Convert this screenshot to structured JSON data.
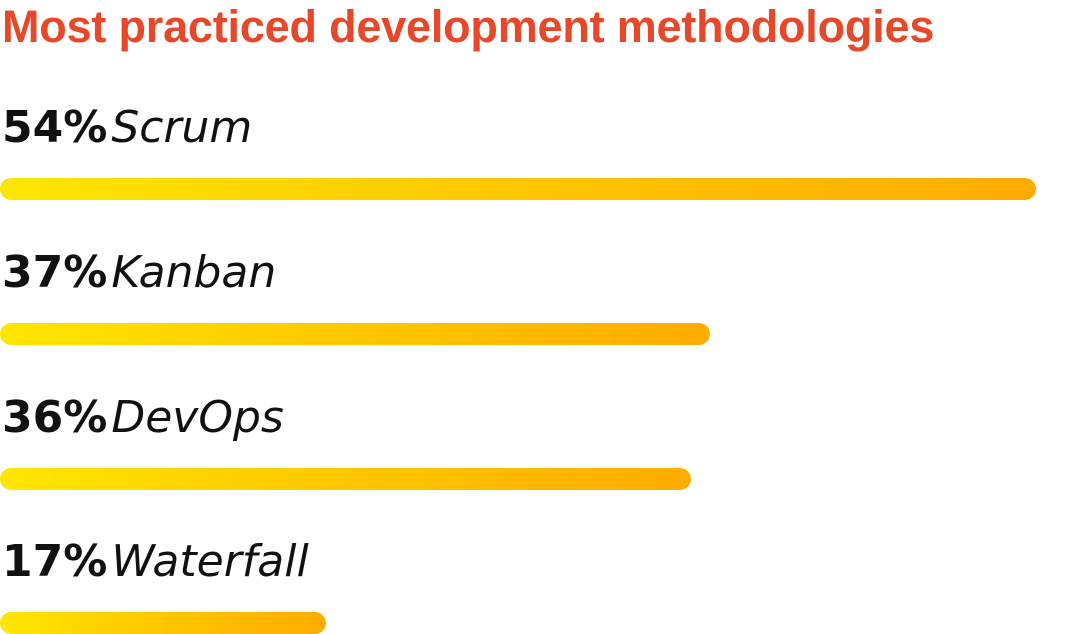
{
  "colors": {
    "title": "#e8482a",
    "bar_start": "#ffe600",
    "bar_end": "#ffac00",
    "text": "#111111"
  },
  "chart_data": {
    "type": "bar",
    "orientation": "horizontal",
    "title": "Most practiced development methodologies",
    "categories": [
      "Scrum",
      "Kanban",
      "DevOps",
      "Waterfall"
    ],
    "values": [
      54,
      37,
      36,
      17
    ],
    "value_labels": [
      "54%",
      "37%",
      "36%",
      "17%"
    ],
    "unit": "%",
    "grid": false,
    "legend": "none"
  }
}
